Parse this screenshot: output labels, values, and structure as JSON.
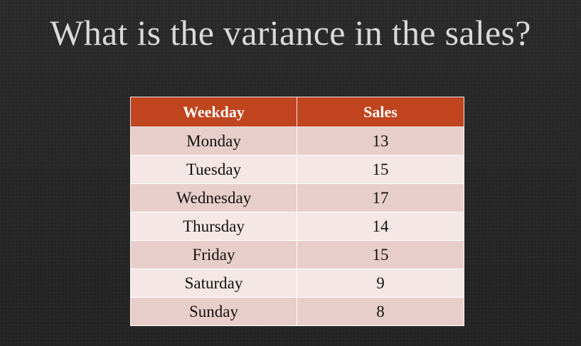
{
  "slide": {
    "title": "What is the variance in the sales?"
  },
  "table": {
    "headers": [
      "Weekday",
      "Sales"
    ],
    "rows": [
      {
        "weekday": "Monday",
        "sales": "13"
      },
      {
        "weekday": "Tuesday",
        "sales": "15"
      },
      {
        "weekday": "Wednesday",
        "sales": "17"
      },
      {
        "weekday": "Thursday",
        "sales": "14"
      },
      {
        "weekday": "Friday",
        "sales": "15"
      },
      {
        "weekday": "Saturday",
        "sales": "9"
      },
      {
        "weekday": "Sunday",
        "sales": "8"
      }
    ]
  },
  "colors": {
    "background": "#262626",
    "title_text": "#d9d9d9",
    "header_fill": "#c0451e",
    "row_odd_fill": "#e8ceca",
    "row_even_fill": "#f4e7e5"
  }
}
